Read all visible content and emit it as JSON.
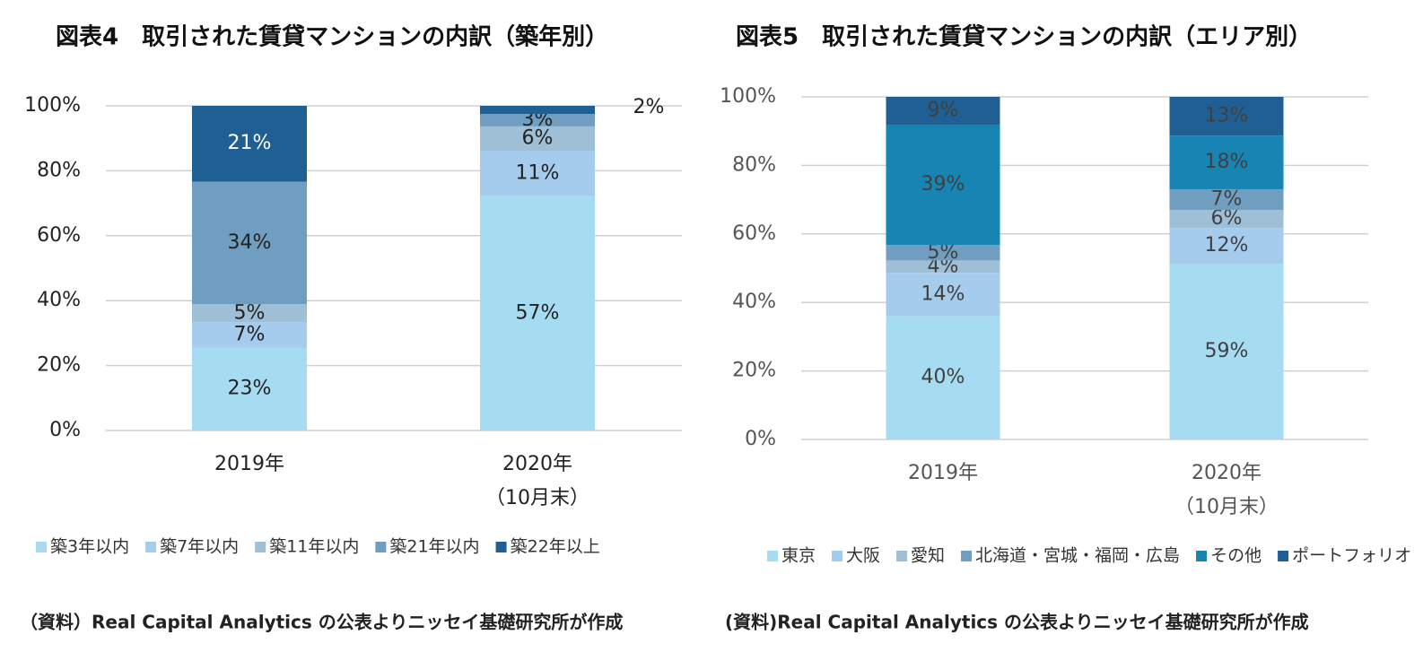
{
  "chart_data": [
    {
      "type": "bar",
      "stack": "percent",
      "title": "図表4　取引された賃貸マンションの内訳（築年別）",
      "categories": [
        [
          "2019年"
        ],
        [
          "2020年",
          "（10月末）"
        ]
      ],
      "series": [
        {
          "name": "築3年以内",
          "color": "#a6dcf2",
          "values": [
            23,
            57
          ],
          "value_labels": [
            "23%",
            "57%"
          ]
        },
        {
          "name": "築7年以内",
          "color": "#a5cced",
          "values": [
            7,
            11
          ],
          "value_labels": [
            "7%",
            "11%"
          ]
        },
        {
          "name": "築11年以内",
          "color": "#9ebfd6",
          "values": [
            5,
            6
          ],
          "value_labels": [
            "5%",
            "6%"
          ]
        },
        {
          "name": "築21年以内",
          "color": "#6f9ec0",
          "values": [
            34,
            3
          ],
          "value_labels": [
            "34%",
            "3%"
          ]
        },
        {
          "name": "築22年以上",
          "color": "#1f5f93",
          "values": [
            21,
            2
          ],
          "value_labels": [
            "21%",
            "2%"
          ]
        }
      ],
      "label_colors": [
        "#222222",
        "#222222",
        "#222222",
        "#222222",
        "#ffffff"
      ],
      "ylim": [
        0,
        100
      ],
      "yticks": [
        {
          "value": 0,
          "label": "0%"
        },
        {
          "value": 20,
          "label": "20%"
        },
        {
          "value": 40,
          "label": "40%"
        },
        {
          "value": 60,
          "label": "60%"
        },
        {
          "value": 80,
          "label": "80%"
        },
        {
          "value": 100,
          "label": "100%"
        }
      ],
      "grid": true,
      "legend": "bottom",
      "note": "（資料）Real Capital Analytics の公表よりニッセイ基礎研究所が作成"
    },
    {
      "type": "bar",
      "stack": "percent",
      "title": "図表5　取引された賃貸マンションの内訳（エリア別）",
      "categories": [
        [
          "2019年"
        ],
        [
          "2020年",
          "（10月末）"
        ]
      ],
      "series": [
        {
          "name": "東京",
          "color": "#a6dcf2",
          "values": [
            40,
            59
          ],
          "value_labels": [
            "40%",
            "59%"
          ]
        },
        {
          "name": "大阪",
          "color": "#a5cced",
          "values": [
            14,
            12
          ],
          "value_labels": [
            "14%",
            "12%"
          ]
        },
        {
          "name": "愛知",
          "color": "#9ebfd6",
          "values": [
            4,
            6
          ],
          "value_labels": [
            "4%",
            "6%"
          ]
        },
        {
          "name": "北海道・宮城・福岡・広島",
          "color": "#6f9ec0",
          "values": [
            5,
            7
          ],
          "value_labels": [
            "5%",
            "7%"
          ]
        },
        {
          "name": "その他",
          "color": "#1784b3",
          "values": [
            39,
            18
          ],
          "value_labels": [
            "39%",
            "18%"
          ]
        },
        {
          "name": "ポートフォリオ",
          "color": "#1f5f93",
          "values": [
            9,
            13
          ],
          "value_labels": [
            "9%",
            "13%"
          ]
        }
      ],
      "label_colors": [
        "#404040",
        "#404040",
        "#404040",
        "#404040",
        "#404040",
        "#404040"
      ],
      "ylim": [
        0,
        100
      ],
      "yticks": [
        {
          "value": 0,
          "label": "0%"
        },
        {
          "value": 20,
          "label": "20%"
        },
        {
          "value": 40,
          "label": "40%"
        },
        {
          "value": 60,
          "label": "60%"
        },
        {
          "value": 80,
          "label": "80%"
        },
        {
          "value": 100,
          "label": "100%"
        }
      ],
      "grid": true,
      "legend": "bottom",
      "note": "(資料)Real Capital Analytics の公表よりニッセイ基礎研究所が作成"
    }
  ]
}
